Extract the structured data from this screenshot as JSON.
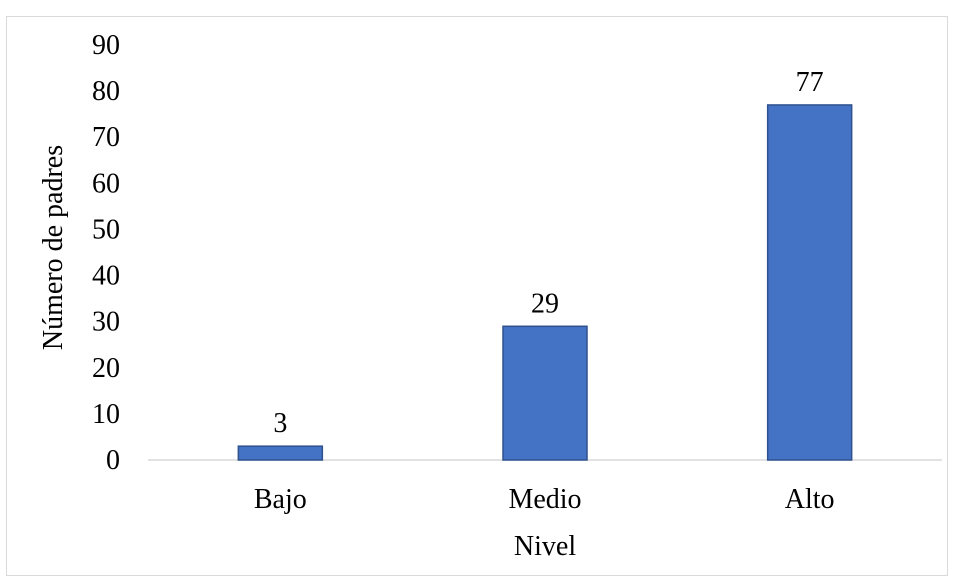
{
  "chart_data": {
    "type": "bar",
    "title": "",
    "xlabel": "Nivel",
    "ylabel": "Número de padres",
    "categories": [
      "Bajo",
      "Medio",
      "Alto"
    ],
    "values": [
      3,
      29,
      77
    ],
    "data_labels": [
      "3",
      "29",
      "77"
    ],
    "ylim": [
      0,
      90
    ],
    "yticks": [
      0,
      10,
      20,
      30,
      40,
      50,
      60,
      70,
      80,
      90
    ],
    "grid": false,
    "legend": "none",
    "colors": {
      "bar_fill": "#4472C4",
      "bar_stroke": "#2F528F",
      "axis": "#d9d9d9",
      "text": "#000000"
    }
  }
}
